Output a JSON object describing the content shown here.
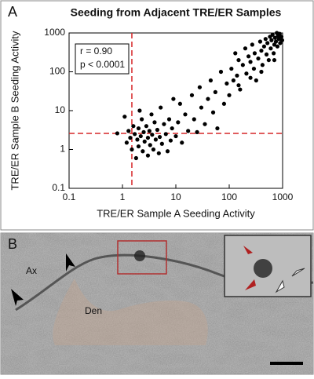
{
  "chart_data": {
    "type": "scatter",
    "title": "Seeding from Adjacent TRE/ER Samples",
    "xlabel": "TRE/ER Sample A Seeding Activity",
    "ylabel": "TRE/ER Sample B Seeding Activity",
    "x": [
      0.8,
      1.2,
      1.3,
      1.4,
      1.5,
      1.6,
      1.7,
      1.8,
      1.9,
      2,
      2,
      2.2,
      2.3,
      2.4,
      2.5,
      2.6,
      2.8,
      3,
      3,
      3.2,
      3.3,
      3.5,
      3.6,
      3.8,
      4,
      4.2,
      4.5,
      4.8,
      5,
      5.2,
      5.5,
      6,
      6.5,
      7,
      7.5,
      8,
      8.5,
      9,
      1.1,
      2.1,
      10,
      11,
      12,
      13,
      15,
      17,
      20,
      22,
      25,
      28,
      30,
      35,
      40,
      45,
      50,
      55,
      60,
      70,
      80,
      90,
      100,
      110,
      120,
      130,
      140,
      150,
      160,
      180,
      200,
      210,
      230,
      250,
      270,
      290,
      300,
      320,
      350,
      380,
      400,
      420,
      450,
      480,
      500,
      520,
      550,
      580,
      600,
      620,
      650,
      680,
      700,
      720,
      750,
      780,
      800,
      820,
      850,
      880,
      900,
      950,
      980,
      700,
      400,
      250,
      150
    ],
    "y": [
      2.6,
      1.5,
      3,
      2,
      1,
      4,
      2.5,
      0.6,
      1.8,
      3.5,
      1.2,
      2.2,
      6,
      0.9,
      2.8,
      1.6,
      4,
      2,
      0.7,
      3,
      1.3,
      8,
      2.4,
      1,
      5,
      1.8,
      3.2,
      0.8,
      2.1,
      12,
      1.4,
      4.5,
      2.5,
      0.9,
      6,
      1.7,
      3.5,
      20,
      7,
      10,
      2.2,
      5,
      15,
      1.5,
      8,
      3,
      25,
      6,
      2.8,
      40,
      12,
      4.5,
      20,
      60,
      9,
      30,
      3.5,
      100,
      15,
      50,
      25,
      120,
      60,
      300,
      80,
      200,
      35,
      150,
      400,
      90,
      250,
      180,
      500,
      120,
      300,
      60,
      220,
      600,
      350,
      150,
      450,
      700,
      280,
      550,
      200,
      800,
      400,
      650,
      900,
      300,
      500,
      750,
      600,
      1000,
      450,
      850,
      700,
      950,
      550,
      800,
      650,
      200,
      100,
      70,
      45
    ],
    "color": "#000000",
    "xlim": [
      0.1,
      1000
    ],
    "ylim": [
      0.1,
      1000
    ],
    "xticks": [
      0.1,
      1,
      10,
      100,
      1000
    ],
    "yticks": [
      0.1,
      1,
      10,
      100,
      1000
    ],
    "log_x": true,
    "log_y": true,
    "annotations": [
      "r = 0.90",
      "p < 0.0001"
    ],
    "reference_lines": {
      "x": 1.5,
      "y": 2.6,
      "color": "#d62728"
    }
  },
  "panels": {
    "a_label": "A",
    "b_label": "B",
    "micrograph_labels": [
      "Ax",
      "Den"
    ]
  }
}
